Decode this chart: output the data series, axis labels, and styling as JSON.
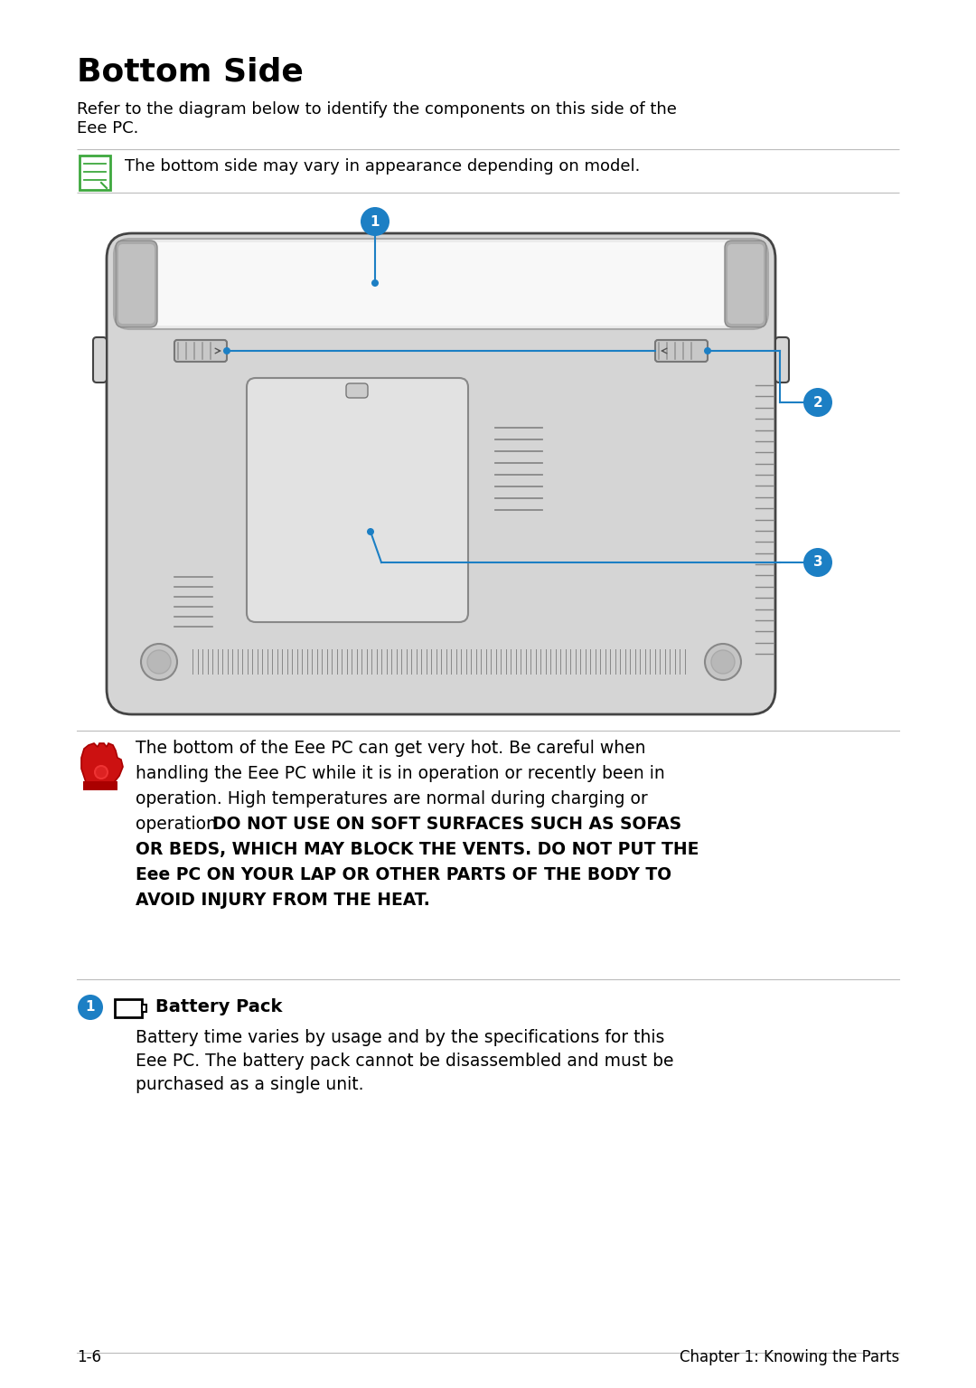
{
  "title": "Bottom Side",
  "subtitle_line1": "Refer to the diagram below to identify the components on this side of the",
  "subtitle_line2": "Eee PC.",
  "note_text": "The bottom side may vary in appearance depending on model.",
  "warn_line1": "The bottom of the Eee PC can get very hot. Be careful when",
  "warn_line2": "handling the Eee PC while it is in operation or recently been in",
  "warn_line3": "operation. High temperatures are normal during charging or",
  "warn_line4_normal": "operation. ",
  "warn_line4_bold": "DO NOT USE ON SOFT SURFACES SUCH AS SOFAS",
  "warn_line5": "OR BEDS, WHICH MAY BLOCK THE VENTS. DO NOT PUT THE",
  "warn_line6": "Eee PC ON YOUR LAP OR OTHER PARTS OF THE BODY TO",
  "warn_line7": "AVOID INJURY FROM THE HEAT.",
  "component_title": "Battery Pack",
  "comp_line1": "Battery time varies by usage and by the specifications for this",
  "comp_line2": "Eee PC. The battery pack cannot be disassembled and must be",
  "comp_line3": "purchased as a single unit.",
  "footer_left": "1-6",
  "footer_right": "Chapter 1: Knowing the Parts",
  "bg_color": "#ffffff",
  "text_color": "#000000",
  "blue_color": "#1c7fc4",
  "line_color": "#bbbbbb",
  "laptop_body_color": "#d5d5d5",
  "laptop_border_color": "#444444",
  "batt_color": "#e8e8e8",
  "panel_color": "#e2e2e2"
}
